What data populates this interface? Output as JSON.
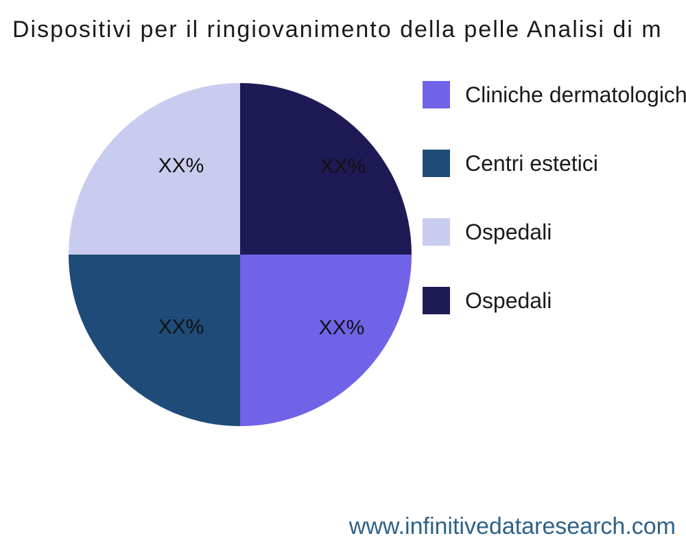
{
  "header": {
    "title": "Dispositivi per il ringiovanimento della pelle Analisi di m"
  },
  "chart_data": {
    "type": "pie",
    "title": "Dispositivi per il ringiovanimento della pelle Analisi di m",
    "legend_position": "right",
    "values_shown_as_placeholders": true,
    "slices": [
      {
        "label": "Cliniche dermatologiche",
        "value": 25,
        "value_label": "XX%",
        "color": "#7163e8",
        "quadrant": "bottom-right"
      },
      {
        "label": "Centri estetici",
        "value": 25,
        "value_label": "XX%",
        "color": "#1f4b78",
        "quadrant": "bottom-left"
      },
      {
        "label": "Ospedali",
        "value": 25,
        "value_label": "XX%",
        "color": "#c9ccee",
        "quadrant": "top-left"
      },
      {
        "label": "Ospedali",
        "value": 25,
        "value_label": "XX%",
        "color": "#1e1a56",
        "quadrant": "top-right"
      }
    ]
  },
  "footer": {
    "website": "www.infinitivedataresearch.com",
    "color": "#2e6189"
  },
  "colors": {
    "background": "#ffffff",
    "text": "#1a1a1a"
  }
}
